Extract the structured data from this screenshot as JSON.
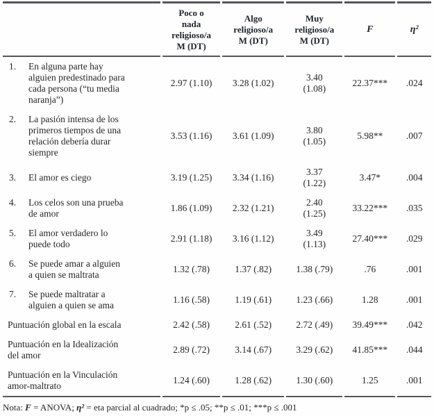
{
  "table": {
    "col_headers": {
      "item": "",
      "poco": "Poco o\nnada\nreligioso/a\nM (DT)",
      "algo": "Algo\nreligioso/a\nM (DT)",
      "muy": "Muy\nreligioso/a\nM (DT)",
      "f": "F",
      "eta": "η²"
    },
    "rows": [
      {
        "num": "1.",
        "item": "En alguna parte hay\nalguien predestinado para\ncada persona (“tu media\nnaranja”)",
        "poco": "2.97 (1.10)",
        "algo": "3.28 (1.02)",
        "muy": "3.40\n(1.08)",
        "f": "22.37***",
        "eta": ".024"
      },
      {
        "num": "2.",
        "item": "La pasión intensa de los\nprimeros tiempos de una\nrelación debería durar\nsiempre",
        "poco": "3.53 (1.16)",
        "algo": "3.61 (1.09)",
        "muy": "3.80\n(1.05)",
        "f": "5.98**",
        "eta": ".007"
      },
      {
        "num": "3.",
        "item": "El amor es ciego",
        "poco": "3.19 (1.25)",
        "algo": "3.34 (1.16)",
        "muy": "3.37\n(1.22)",
        "f": "3.47*",
        "eta": ".004"
      },
      {
        "num": "4.",
        "item": "Los celos son una prueba\nde amor",
        "poco": "1.86 (1.09)",
        "algo": "2.32 (1.21)",
        "muy": "2.40\n(1.25)",
        "f": "33.22***",
        "eta": ".035"
      },
      {
        "num": "5.",
        "item": "El amor verdadero lo\npuede todo",
        "poco": "2.91 (1.18)",
        "algo": "3.16 (1.12)",
        "muy": "3.49\n(1.13)",
        "f": "27.40***",
        "eta": ".029"
      },
      {
        "num": "6.",
        "item": "Se puede amar a alguien\na quien se maltrata",
        "poco": "1.32 (.78)",
        "algo": "1.37 (.82)",
        "muy": "1.38 (.79)",
        "f": ".76",
        "eta": ".001"
      },
      {
        "num": "7.",
        "item": "Se puede maltratar a\nalguien a quien se ama",
        "poco": "1.16 (.58)",
        "algo": "1.19 (.61)",
        "muy": "1.23 (.66)",
        "f": "1.28",
        "eta": ".001"
      },
      {
        "num": "",
        "item": "Puntuación global en la escala",
        "poco": "2.42 (.58)",
        "algo": "2.61 (.52)",
        "muy": "2.72 (.49)",
        "f": "39.49***",
        "eta": ".042"
      },
      {
        "num": "",
        "item": "Puntuación en la Idealización\ndel amor",
        "poco": "2.89 (.72)",
        "algo": "3.14 (.67)",
        "muy": "3.29 (.62)",
        "f": "41.85***",
        "eta": ".044"
      },
      {
        "num": "",
        "item": "Puntuación en la Vinculación\namor-maltrato",
        "poco": "1.24 (.60)",
        "algo": "1.28 (.62)",
        "muy": "1.30 (.60)",
        "f": "1.25",
        "eta": ".001"
      }
    ],
    "note": {
      "prefix": "Nota: ",
      "f_symbol": "F",
      "f_text": " = ANOVA; ",
      "eta_symbol": "η²",
      "eta_text": " = eta parcial al cuadrado; *p ≤ .05; **p ≤ .01; ***p ≤ .001"
    },
    "colors": {
      "text": "#262626",
      "rule": "#54555a",
      "background": "#fefefe"
    }
  }
}
